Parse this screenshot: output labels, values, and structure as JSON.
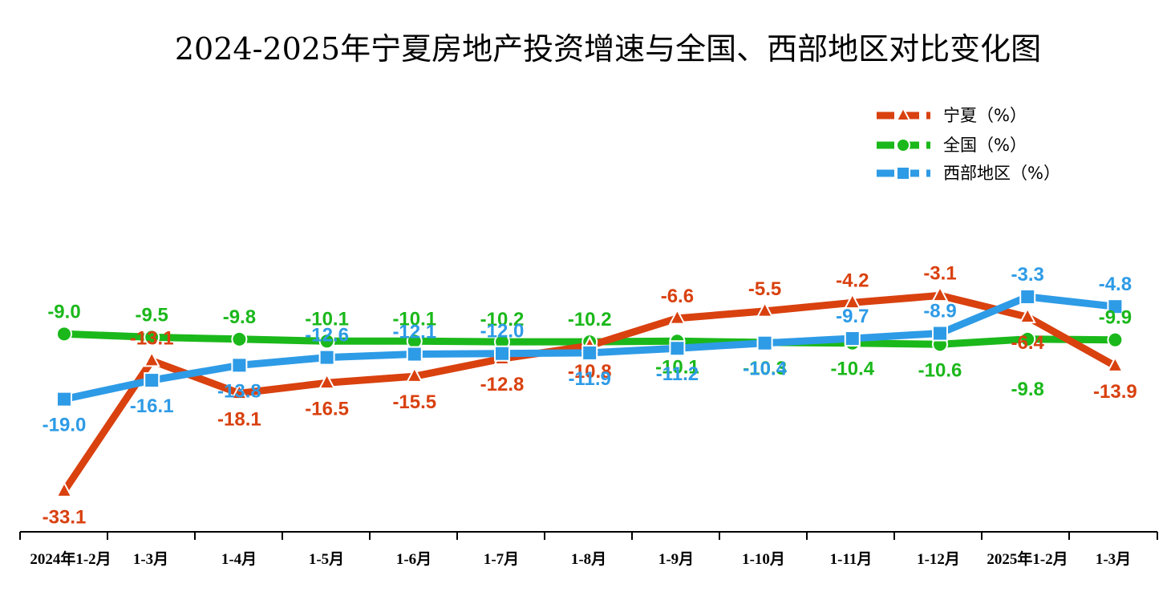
{
  "chart_data": {
    "type": "line",
    "title": "2024-2025年宁夏房地产投资增速与全国、西部地区对比变化图",
    "categories": [
      "2024年1-2月",
      "1-3月",
      "1-4月",
      "1-5月",
      "1-6月",
      "1-7月",
      "1-8月",
      "1-9月",
      "1-10月",
      "1-11月",
      "1-12月",
      "2025年1-2月",
      "1-3月"
    ],
    "series": [
      {
        "name": "宁夏（%）",
        "color": "#D9410F",
        "marker": "triangle",
        "values": [
          -33.1,
          -13.1,
          -18.1,
          -16.5,
          -15.5,
          -12.8,
          -10.8,
          -6.6,
          -5.5,
          -4.2,
          -3.1,
          -6.4,
          -13.9
        ]
      },
      {
        "name": "全国（%）",
        "color": "#1BB81B",
        "marker": "circle",
        "values": [
          -9.0,
          -9.5,
          -9.8,
          -10.1,
          -10.1,
          -10.2,
          -10.2,
          -10.1,
          -10.3,
          -10.4,
          -10.6,
          -9.8,
          -9.9
        ]
      },
      {
        "name": "西部地区（%）",
        "color": "#2E9BE6",
        "marker": "square",
        "values": [
          -19.0,
          -16.1,
          -13.8,
          -12.6,
          -12.1,
          -12.0,
          -11.9,
          -11.2,
          -10.4,
          -9.7,
          -8.9,
          -3.3,
          -4.8
        ]
      }
    ],
    "value_labels": {
      "宁夏（%）": [
        "-33.1",
        "-13.1",
        "-18.1",
        "-16.5",
        "-15.5",
        "-12.8",
        "-10.8",
        "-6.6",
        "-5.5",
        "-4.2",
        "-3.1",
        "-6.4",
        "-13.9"
      ],
      "全国（%）": [
        "-9.0",
        "-9.5",
        "-9.8",
        "-10.1",
        "-10.1",
        "-10.2",
        "-10.2",
        "-10.1",
        "-10.3",
        "-10.4",
        "-10.6",
        "-9.8",
        "-9.9"
      ],
      "西部地区（%）": [
        "-19.0",
        "-16.1",
        "-13.8",
        "-12.6",
        "-12.1",
        "-12.0",
        "-11.9",
        "-11.2",
        "-10.4",
        "-9.7",
        "-8.9",
        "-3.3",
        "-4.8"
      ]
    },
    "y_axis_visible": false,
    "grid": false,
    "legend_position": "top-right"
  }
}
